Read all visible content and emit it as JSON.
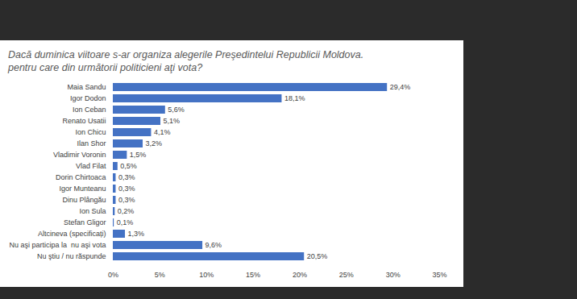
{
  "chart_data": {
    "type": "bar",
    "orientation": "horizontal",
    "title": "Dacă duminica viitoare s-ar organiza alegerile Preşedintelui Republicii Moldova.\npentru care din următorii politicieni aţi vota?",
    "categories": [
      "Maia Sandu",
      "Igor Dodon",
      "Ion Ceban",
      "Renato Usatii",
      "Ion Chicu",
      "Ilan Shor",
      "Vladimir Voronin",
      "Vlad Filat",
      "Dorin Chirtoaca",
      "Igor Munteanu",
      "Dinu Plângău",
      "Ion Sula",
      "Stefan Gligor",
      "Altcineva (specificați)",
      "Nu aşi participa la  nu aşi vota",
      "Nu ştiu / nu răspunde"
    ],
    "values": [
      29.4,
      18.1,
      5.6,
      5.1,
      4.1,
      3.2,
      1.5,
      0.5,
      0.3,
      0.3,
      0.3,
      0.2,
      0.1,
      1.3,
      9.6,
      20.5
    ],
    "value_labels": [
      "29,4%",
      "18,1%",
      "5,6%",
      "5,1%",
      "4,1%",
      "3,2%",
      "1,5%",
      "0,5%",
      "0,3%",
      "0,3%",
      "0,3%",
      "0,2%",
      "0,1%",
      "1,3%",
      "9,6%",
      "20,5%"
    ],
    "color": "#4472c4",
    "xlim": [
      0,
      35
    ],
    "xticks": [
      {
        "value": 0,
        "label": "0%"
      },
      {
        "value": 5,
        "label": "5%"
      },
      {
        "value": 10,
        "label": "10%"
      },
      {
        "value": 15,
        "label": "15%"
      },
      {
        "value": 20,
        "label": "20%"
      },
      {
        "value": 25,
        "label": "25%"
      },
      {
        "value": 30,
        "label": "30%"
      },
      {
        "value": 35,
        "label": "35%"
      }
    ],
    "grid": false,
    "data_labels": true
  }
}
